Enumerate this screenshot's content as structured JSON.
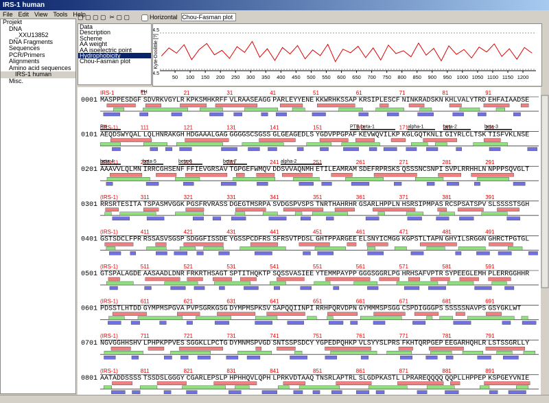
{
  "window": {
    "title": "IRS-1 human"
  },
  "menu": [
    "File",
    "Edit",
    "View",
    "Tools",
    "Help"
  ],
  "tree": [
    "Projekt",
    "DNA",
    "_XXU13852",
    "DNA Fragments",
    "Sequences",
    "PCR/Primers",
    "Alignments",
    "Amino acid sequences",
    "IRS-1 human",
    "Misc."
  ],
  "toolbar": {
    "checkbox": "Horizontal",
    "dropdown": "Chou-Fasman plot"
  },
  "property_list": [
    "Data",
    "Description",
    "Scheme",
    "AA weight",
    "AA isoelectric point",
    "Hydrophobicity",
    "Chou-Fasman plot"
  ],
  "chart_data": {
    "type": "line",
    "y_label": "Kyte-Doolittle [?]",
    "color": "#e00000",
    "x": [
      5,
      30,
      55,
      80,
      105,
      130,
      155,
      180,
      205,
      230,
      255,
      280,
      305,
      330,
      355,
      380,
      405,
      430,
      455,
      480,
      505,
      530,
      555,
      580,
      605,
      630,
      655,
      680,
      705,
      730,
      755,
      780,
      805,
      830,
      855,
      880,
      905,
      930,
      955,
      980,
      1005,
      1030,
      1055,
      1080,
      1105,
      1130,
      1155,
      1180,
      1205,
      1230
    ],
    "values": [
      -1.2,
      0.8,
      -0.5,
      1.6,
      -2.1,
      0.4,
      1.9,
      -0.9,
      0.2,
      -1.8,
      1.1,
      -0.3,
      2.4,
      -1.5,
      0.6,
      -2.3,
      0.9,
      -0.7,
      1.4,
      -1.9,
      0.3,
      -1.1,
      1.7,
      -2.6,
      0.5,
      -0.4,
      1.2,
      -1.6,
      0.8,
      -2.2,
      1.5,
      -0.6,
      0.1,
      -1.4,
      2.0,
      -1.0,
      0.7,
      -2.4,
      1.3,
      -0.8,
      0.4,
      -1.7,
      1.0,
      -0.2,
      1.8,
      -1.3,
      0.6,
      -2.0,
      0.9,
      -0.5
    ],
    "xlim": [
      0,
      1243
    ],
    "ylim": [
      -4.5,
      4.5
    ],
    "xticks": [
      50,
      100,
      150,
      200,
      250,
      300,
      350,
      400,
      450,
      500,
      550,
      600,
      650,
      700,
      750,
      800,
      850,
      900,
      950,
      1000,
      1050,
      1100,
      1150,
      1200
    ],
    "yticks": [
      4.5,
      -4.5
    ]
  },
  "sequence": {
    "rows": [
      {
        "number": "0001",
        "label": "IRS-1",
        "ruler": [
          11,
          21,
          31,
          41,
          51,
          61,
          71,
          81,
          91
        ],
        "annotations": [
          "PH"
        ],
        "blocks": [
          "MASPPESDGF",
          "SDVRKVGYLR",
          "KPKSMHKRFF",
          "VLRAASEAGG",
          "PARLEYYENE",
          "KKWRHKSSAP",
          "KRSIPLESCF",
          "NINKRADSKN",
          "KHLVALYTRD",
          "EHFAIAADSE"
        ]
      },
      {
        "number": "0101",
        "label": "(IRS-1)",
        "ruler": [
          111,
          121,
          131,
          141,
          151,
          161,
          171,
          181,
          191
        ],
        "annotations": [
          "PH",
          "PTB",
          "beta-1",
          "alpha-1",
          "beta-2",
          "beta-3"
        ],
        "blocks": [
          "AEQDSWYQAL",
          "LQLHNRAKGH",
          "HDGAAALGAG",
          "GGGGSCSGSS",
          "GLGEAGEDLS",
          "YGDVPPGPAF",
          "KEVWQVILKP",
          "KGLGQTKNLI",
          "GIYRLCLTSK",
          "TISFVKLNSE"
        ]
      },
      {
        "number": "0201",
        "label": "(IRS-1)",
        "ruler": [
          211,
          221,
          231,
          241,
          251,
          261,
          271,
          281,
          291
        ],
        "annotations": [
          "beta-4",
          "beta-5",
          "beta-6",
          "beta-7",
          "alpha-2"
        ],
        "blocks": [
          "AAAVVLQLMN",
          "IRRCGHSENF",
          "FFIEVGRSAV",
          "TGPGEFWMQV",
          "DDSVVAQNMH",
          "ETILEAMRAM",
          "SDEFRPRSKS",
          "QSSSNCSNPI",
          "SVPLRRHHLN",
          "NPPPSQVGLT"
        ]
      },
      {
        "number": "0301",
        "label": "(IRS-1)",
        "ruler": [
          311,
          321,
          331,
          341,
          351,
          361,
          371,
          381,
          391
        ],
        "annotations": [],
        "blocks": [
          "RRSRTESITA",
          "TSPASMVGGK",
          "PGSFRVRASS",
          "DGEGTMSRPA",
          "SVDGSPVSPS",
          "TNRTHAHRHR",
          "GSARLHPPLN",
          "HSRSIPMPAS",
          "RCSPSATSPV",
          "SLSSSSTSGH"
        ]
      },
      {
        "number": "0401",
        "label": "(IRS-1)",
        "ruler": [
          411,
          421,
          431,
          441,
          451,
          461,
          471,
          481,
          491
        ],
        "annotations": [],
        "blocks": [
          "GSTSDCLFPR",
          "RSSASVSGSP",
          "SDGGFISSDE",
          "YGSSPCDFRS",
          "SFRSVTPDSL",
          "GHTPPARGEE",
          "ELSNYICMGG",
          "KGPSTLTAPN",
          "GHYILSRGGN",
          "GHRCTPGTGL"
        ]
      },
      {
        "number": "0501",
        "label": "(IRS-1)",
        "ruler": [
          511,
          521,
          531,
          541,
          551,
          561,
          571,
          581,
          591
        ],
        "annotations": [],
        "blocks": [
          "GTSPALAGDE",
          "AASAADLDNR",
          "FRKRTHSAGT",
          "SPTITHQKTP",
          "SQSSVASIEE",
          "YTEMMPAYPP",
          "GGGSGGRLPG",
          "HRHSAFVPTR",
          "SYPEEGLEMH",
          "PLERRGGHHR"
        ]
      },
      {
        "number": "0601",
        "label": "(IRS-1)",
        "ruler": [
          611,
          621,
          631,
          641,
          651,
          661,
          671,
          681,
          691
        ],
        "annotations": [],
        "blocks": [
          "PDSSTLHTDD",
          "GYMPMSPGVA",
          "PVPSGRKGSG",
          "DYMPMSPKSV",
          "SAPQQIINPI",
          "RRHPQRVDPN",
          "GYMMMSPSGG",
          "CSPDIGGGPS",
          "SSSSSNAVPS",
          "GSYGKLWT"
        ]
      },
      {
        "number": "0701",
        "label": "(IRS-1)",
        "ruler": [
          711,
          721,
          731,
          741,
          751,
          761,
          771,
          781,
          791
        ],
        "annotations": [],
        "blocks": [
          "NGVGGHHSHV",
          "LPHPKPPVES",
          "SGGKLLPCTG",
          "DYMNMSPVGD",
          "SNTSSPSDCY",
          "YGPEDPQHKP",
          "VLSYYSLPRS",
          "FKHTQRPGEP",
          "EEGARHQHLR",
          "LSTSSGRLLY"
        ]
      },
      {
        "number": "0801",
        "label": "(IRS-1)",
        "ruler": [
          811,
          821,
          831,
          841,
          851,
          861,
          871,
          881,
          891
        ],
        "annotations": [],
        "blocks": [
          "AATADDSSSS",
          "TSSDSLGGGY",
          "CGARLEPSLP",
          "HPHHQVLQPH",
          "LPRKVDTAAQ",
          "TNSRLAPTRL",
          "SLGDPKASTL",
          "LPRAREQQQQ",
          "QQPLLHPPEP",
          "KSPGEYVNIE"
        ]
      }
    ]
  }
}
